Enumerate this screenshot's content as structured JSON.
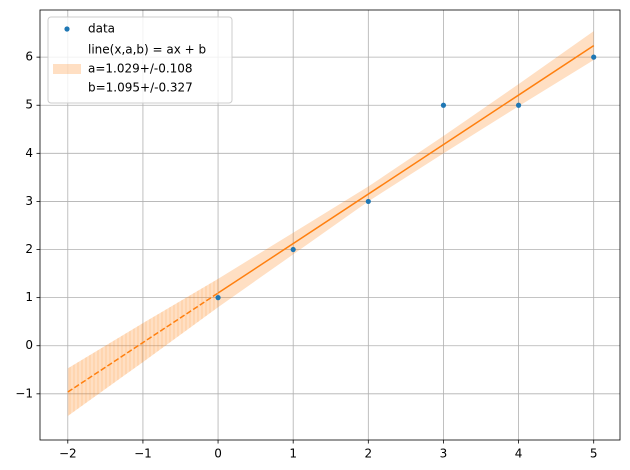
{
  "chart_data": {
    "type": "fit",
    "xlim": [
      -2.37,
      5.35
    ],
    "ylim": [
      -1.96,
      6.98
    ],
    "xticks": [
      {
        "value": -2,
        "label": "−2"
      },
      {
        "value": -1,
        "label": "−1"
      },
      0,
      1,
      2,
      3,
      4,
      5
    ],
    "yticks": [
      {
        "value": -1,
        "label": "−1"
      },
      0,
      1,
      2,
      3,
      4,
      5,
      6
    ],
    "grid": true,
    "legend": "upper left",
    "data": {
      "name": "data",
      "color": "#1f77b4",
      "x": [
        0,
        1,
        2,
        3,
        4,
        5
      ],
      "y": [
        1,
        2,
        3,
        5,
        5,
        6
      ]
    },
    "fit": {
      "color": "#ff7f0e",
      "x": [
        0,
        5
      ],
      "y": [
        1.095,
        6.24
      ]
    },
    "extrapolation": {
      "color": "#ff7f0e",
      "x": [
        -2,
        0
      ],
      "y": [
        -0.963,
        1.095
      ]
    },
    "band": {
      "color": "#ff7f0e",
      "legend_label": [
        "line(x,a,b) = ax + b",
        "a=1.029+/-0.108",
        "b=1.095+/-0.327"
      ],
      "x": [
        -2,
        -1,
        0,
        1,
        2,
        3,
        4,
        5
      ],
      "lower": [
        -1.46,
        -0.34,
        0.8,
        1.9,
        3.0,
        4.0,
        4.98,
        5.94
      ],
      "upper": [
        -0.47,
        0.47,
        1.39,
        2.35,
        3.31,
        4.36,
        5.44,
        6.54
      ]
    }
  }
}
